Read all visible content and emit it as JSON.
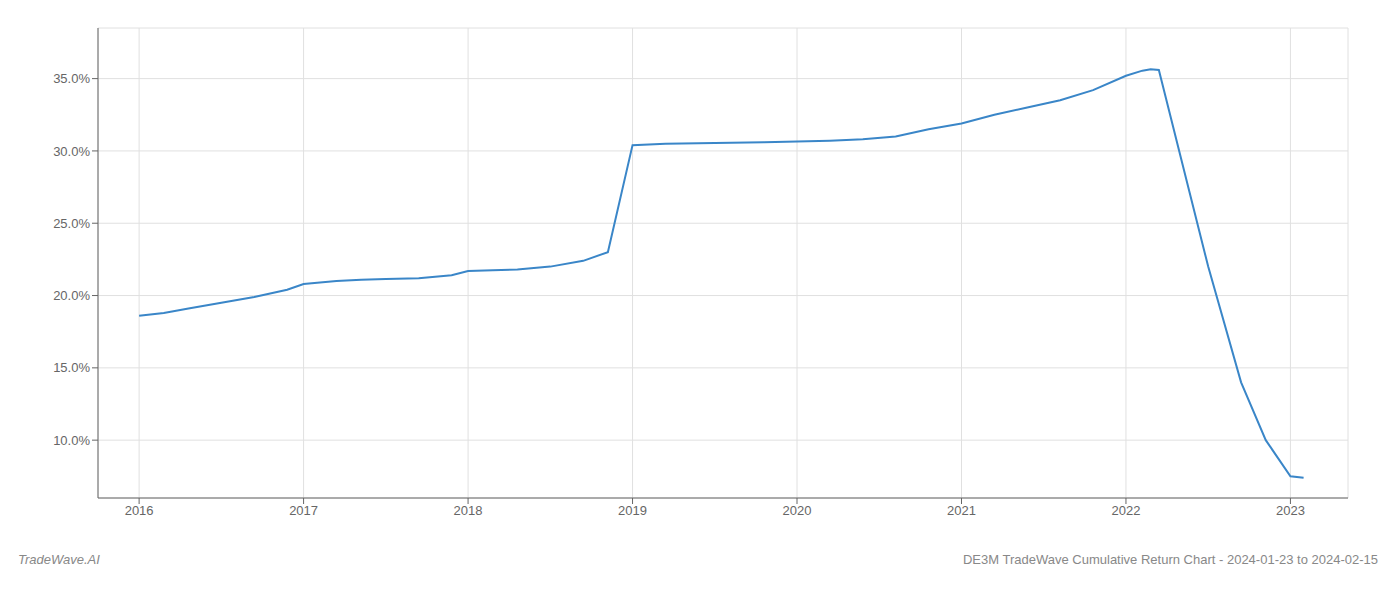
{
  "chart_data": {
    "type": "line",
    "x": [
      2016.0,
      2016.15,
      2016.3,
      2016.5,
      2016.7,
      2016.9,
      2017.0,
      2017.2,
      2017.35,
      2017.5,
      2017.7,
      2017.9,
      2018.0,
      2018.15,
      2018.3,
      2018.5,
      2018.7,
      2018.85,
      2019.0,
      2019.2,
      2019.5,
      2019.8,
      2020.0,
      2020.2,
      2020.4,
      2020.6,
      2020.8,
      2021.0,
      2021.2,
      2021.4,
      2021.6,
      2021.8,
      2022.0,
      2022.1,
      2022.15,
      2022.2,
      2022.5,
      2022.7,
      2022.85,
      2023.0,
      2023.08
    ],
    "values": [
      18.6,
      18.8,
      19.1,
      19.5,
      19.9,
      20.4,
      20.8,
      21.0,
      21.1,
      21.15,
      21.2,
      21.4,
      21.7,
      21.75,
      21.8,
      22.0,
      22.4,
      23.0,
      30.4,
      30.5,
      30.55,
      30.6,
      30.65,
      30.7,
      30.8,
      31.0,
      31.5,
      31.9,
      32.5,
      33.0,
      33.5,
      34.2,
      35.2,
      35.55,
      35.65,
      35.6,
      22.0,
      14.0,
      10.0,
      7.5,
      7.4
    ],
    "color": "#3a86c8",
    "xlim": [
      2015.75,
      2023.35
    ],
    "ylim": [
      6.0,
      38.5
    ],
    "xticks": [
      2016,
      2017,
      2018,
      2019,
      2020,
      2021,
      2022,
      2023
    ],
    "yticks": [
      {
        "value": 10.0,
        "label": "10.0%"
      },
      {
        "value": 15.0,
        "label": "15.0%"
      },
      {
        "value": 20.0,
        "label": "20.0%"
      },
      {
        "value": 25.0,
        "label": "25.0%"
      },
      {
        "value": 30.0,
        "label": "30.0%"
      },
      {
        "value": 35.0,
        "label": "35.0%"
      }
    ],
    "grid": true,
    "annotations": [
      "TradeWave.AI",
      "DE3M TradeWave Cumulative Return Chart - 2024-01-23 to 2024-02-15"
    ]
  }
}
